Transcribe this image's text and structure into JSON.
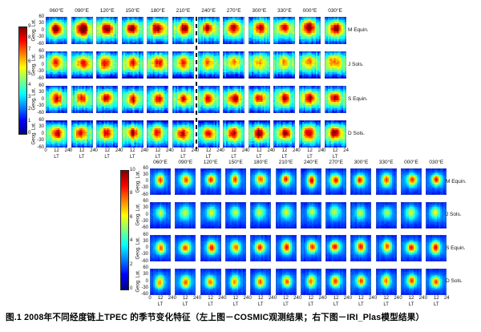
{
  "figure": {
    "caption": "图.1  2008年不同经度链上TPEC 的季节变化特征（左上图－COSMIC观测结果；右下图－IRI_Plas模型结果）"
  },
  "chart_data": [
    {
      "type": "heatmap",
      "name": "COSMIC observations (top-left panel)",
      "columns": [
        "060°E",
        "090°E",
        "120°E",
        "150°E",
        "180°E",
        "210°E",
        "240°E",
        "270°E",
        "300°E",
        "330°E",
        "000°E",
        "030°E"
      ],
      "rows": [
        "M Equin.",
        "J Sols.",
        "S Equin.",
        "D Sols."
      ],
      "xlabel": "LT",
      "x_ticks": [
        "0",
        "12",
        "24"
      ],
      "ylabel": "Geog. Lat.",
      "y_ticks": [
        "60",
        "30",
        "0",
        "-30",
        "-60"
      ],
      "colorbar": {
        "min": 0,
        "max": 9,
        "ticks": [
          "9",
          "8",
          "7",
          "6",
          "5",
          "4",
          "3",
          "2",
          "1",
          "0"
        ],
        "colormap": "jet"
      },
      "divider_after_column": "210°E",
      "background_level": 3.9,
      "edge_level": 2.0,
      "peak_tec": [
        [
          8.8,
          9.0,
          8.6,
          8.7,
          8.5,
          8.4,
          8.3,
          8.2,
          7.9,
          8.3,
          8.6,
          8.8
        ],
        [
          7.2,
          7.2,
          7.4,
          7.6,
          7.4,
          7.1,
          6.8,
          6.6,
          6.2,
          6.4,
          6.4,
          6.9
        ],
        [
          7.9,
          7.9,
          8.3,
          7.9,
          7.9,
          7.6,
          7.9,
          8.1,
          7.9,
          8.1,
          8.3,
          8.3
        ],
        [
          7.9,
          8.1,
          7.9,
          7.9,
          7.6,
          7.9,
          7.9,
          8.3,
          8.6,
          8.4,
          8.1,
          8.3
        ]
      ]
    },
    {
      "type": "heatmap",
      "name": "IRI_Plas model (bottom-right panel)",
      "columns": [
        "060°E",
        "090°E",
        "120°E",
        "150°E",
        "180°E",
        "210°E",
        "240°E",
        "270°E",
        "300°E",
        "330°E",
        "000°E",
        "030°E"
      ],
      "rows": [
        "M Equin.",
        "J Sols.",
        "S Equin.",
        "D Sols."
      ],
      "xlabel": "LT",
      "x_ticks": [
        "0",
        "12",
        "24"
      ],
      "ylabel": "Geog. Lat.",
      "y_ticks": [
        "60",
        "30",
        "0",
        "-30",
        "-60"
      ],
      "colorbar": {
        "min": 0,
        "max": 10,
        "ticks": [
          "10",
          "8",
          "6",
          "4",
          "2",
          "0"
        ],
        "colormap": "jet"
      },
      "background_level": 2.3,
      "edge_level": 1.7,
      "peak_tec": [
        [
          7.6,
          7.6,
          7.9,
          7.6,
          7.6,
          7.9,
          8.1,
          8.1,
          7.9,
          7.6,
          7.7,
          8.1
        ],
        [
          5.4,
          5.4,
          5.6,
          5.6,
          5.5,
          5.4,
          5.3,
          5.3,
          5.2,
          5.3,
          5.5,
          5.6
        ],
        [
          7.6,
          7.6,
          7.9,
          7.7,
          7.7,
          7.9,
          8.1,
          8.1,
          7.9,
          7.7,
          7.9,
          8.1
        ],
        [
          7.1,
          7.3,
          7.3,
          7.3,
          7.1,
          7.4,
          7.4,
          7.6,
          7.4,
          7.3,
          7.4,
          7.6
        ]
      ]
    }
  ]
}
